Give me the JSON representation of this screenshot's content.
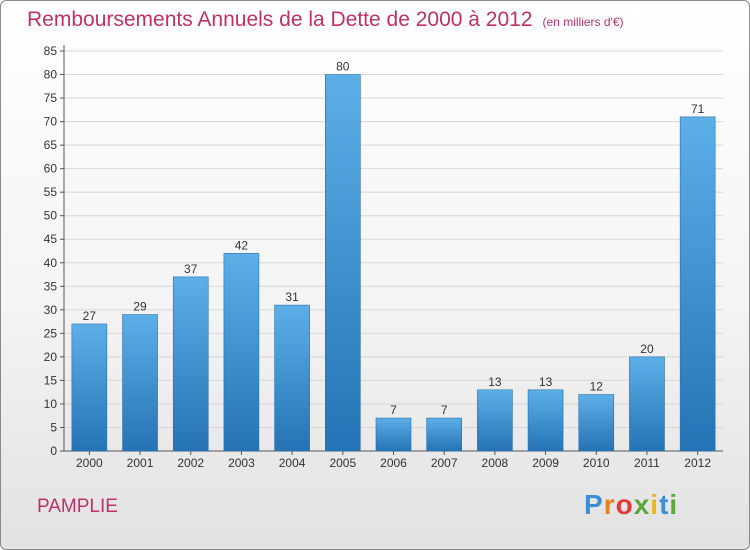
{
  "header": {
    "title": "Remboursements Annuels de la Dette de 2000 à 2012",
    "unit": "(en milliers d'€)"
  },
  "commune": "PAMPLIE",
  "brand": "Proxiti",
  "colors": {
    "title": "#c0306a",
    "bar_top": "#5dafe8",
    "bar_bottom": "#2573b4",
    "grid": "#d8d8d8",
    "axis_text": "#333333"
  },
  "chart_data": {
    "type": "bar",
    "title": "Remboursements Annuels de la Dette de 2000 à 2012",
    "xlabel": "",
    "ylabel": "",
    "categories": [
      "2000",
      "2001",
      "2002",
      "2003",
      "2004",
      "2005",
      "2006",
      "2007",
      "2008",
      "2009",
      "2010",
      "2011",
      "2012"
    ],
    "values": [
      27,
      29,
      37,
      42,
      31,
      80,
      7,
      7,
      13,
      13,
      12,
      20,
      71
    ],
    "ylim": [
      0,
      85
    ],
    "yticks": [
      0,
      5,
      10,
      15,
      20,
      25,
      30,
      35,
      40,
      45,
      50,
      55,
      60,
      65,
      70,
      75,
      80,
      85
    ],
    "grid": true,
    "data_labels": true
  }
}
